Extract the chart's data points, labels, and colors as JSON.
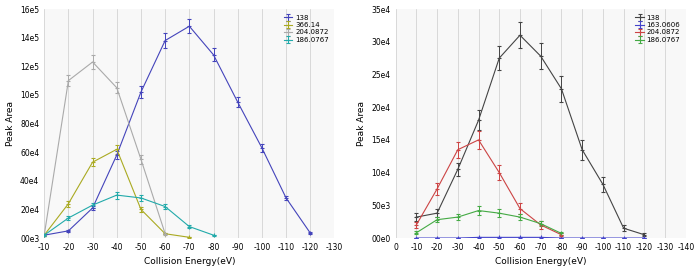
{
  "left_plot": {
    "xlabel": "Collision Energy(eV)",
    "ylabel": "Peak Area",
    "xlim": [
      -10,
      -130
    ],
    "ylim": [
      0,
      160000
    ],
    "yticks": [
      0,
      20000,
      40000,
      60000,
      80000,
      100000,
      120000,
      140000,
      160000
    ],
    "ytick_labels": [
      "00e3",
      "20e4",
      "40e4",
      "60e4",
      "80e4",
      "10e5",
      "12e5",
      "14e5",
      "16e5"
    ],
    "xticks": [
      -10,
      -20,
      -30,
      -40,
      -50,
      -60,
      -70,
      -80,
      -90,
      -100,
      -110,
      -120,
      -130
    ],
    "series": [
      {
        "label": "138",
        "color": "#4444bb",
        "x": [
          -10,
          -20,
          -30,
          -40,
          -50,
          -60,
          -70,
          -80,
          -90,
          -100,
          -110,
          -120
        ],
        "y": [
          2000,
          5000,
          21000,
          58000,
          102000,
          138000,
          148000,
          128000,
          95000,
          63000,
          28000,
          3500
        ],
        "yerr": [
          500,
          800,
          1500,
          2500,
          4000,
          5000,
          5000,
          4500,
          3500,
          3000,
          1500,
          500
        ]
      },
      {
        "label": "366.14",
        "color": "#aaaa22",
        "x": [
          -10,
          -20,
          -30,
          -40,
          -50,
          -60,
          -70
        ],
        "y": [
          2000,
          24000,
          53000,
          62000,
          20000,
          3000,
          500
        ],
        "yerr": [
          400,
          2000,
          3000,
          3000,
          1500,
          500,
          200
        ]
      },
      {
        "label": "204.0872",
        "color": "#aaaaaa",
        "x": [
          -10,
          -20,
          -30,
          -40,
          -50,
          -60
        ],
        "y": [
          2000,
          110000,
          123000,
          105000,
          55000,
          3000
        ],
        "yerr": [
          400,
          4000,
          5000,
          4000,
          3000,
          600
        ]
      },
      {
        "label": "186.0767",
        "color": "#22aaaa",
        "x": [
          -10,
          -20,
          -30,
          -40,
          -50,
          -60,
          -70,
          -80
        ],
        "y": [
          2000,
          14000,
          23000,
          30000,
          28000,
          22000,
          8000,
          2000
        ],
        "yerr": [
          400,
          1200,
          1800,
          2500,
          2200,
          1800,
          900,
          400
        ]
      }
    ]
  },
  "right_plot": {
    "xlabel": "Collision Energy(eV)",
    "ylabel": "Peak Area",
    "xlim": [
      0,
      -140
    ],
    "ylim": [
      0,
      35000
    ],
    "yticks": [
      0,
      5000,
      10000,
      15000,
      20000,
      25000,
      30000,
      35000
    ],
    "ytick_labels": [
      "00e0",
      "50e3",
      "10e4",
      "15e4",
      "20e4",
      "25e4",
      "30e4",
      "35e4"
    ],
    "xticks": [
      0,
      -10,
      -20,
      -30,
      -40,
      -50,
      -60,
      -70,
      -80,
      -90,
      -100,
      -110,
      -120,
      -130,
      -140
    ],
    "series": [
      {
        "label": "138",
        "color": "#444444",
        "x": [
          -10,
          -20,
          -30,
          -40,
          -50,
          -60,
          -70,
          -80,
          -90,
          -100,
          -110,
          -120
        ],
        "y": [
          3200,
          3800,
          10500,
          18000,
          27500,
          31000,
          27800,
          22800,
          13500,
          8200,
          1500,
          500
        ],
        "yerr": [
          600,
          600,
          1000,
          1500,
          1800,
          2000,
          2000,
          2000,
          1500,
          1200,
          500,
          200
        ]
      },
      {
        "label": "163.0606",
        "color": "#4444cc",
        "x": [
          -10,
          -20,
          -30,
          -40,
          -50,
          -60,
          -70,
          -80,
          -90,
          -100,
          -110,
          -120
        ],
        "y": [
          0,
          0,
          0,
          100,
          100,
          100,
          100,
          0,
          0,
          0,
          0,
          0
        ],
        "yerr": [
          20,
          20,
          20,
          50,
          50,
          50,
          30,
          20,
          10,
          10,
          10,
          10
        ]
      },
      {
        "label": "204.0872",
        "color": "#cc4444",
        "x": [
          -10,
          -20,
          -30,
          -40,
          -50,
          -60,
          -70,
          -80
        ],
        "y": [
          2000,
          7500,
          13500,
          15000,
          10000,
          4500,
          2000,
          500
        ],
        "yerr": [
          500,
          900,
          1200,
          1400,
          1200,
          900,
          600,
          200
        ]
      },
      {
        "label": "186.0767",
        "color": "#44aa44",
        "x": [
          -10,
          -20,
          -30,
          -40,
          -50,
          -60,
          -70,
          -80
        ],
        "y": [
          800,
          2800,
          3200,
          4200,
          3800,
          3200,
          2200,
          700
        ],
        "yerr": [
          200,
          400,
          500,
          700,
          600,
          500,
          350,
          200
        ]
      }
    ]
  },
  "background_color": "#ffffff",
  "plot_bg_color": "#f8f8f8",
  "grid_color": "#cccccc",
  "fontsize": 6.5
}
